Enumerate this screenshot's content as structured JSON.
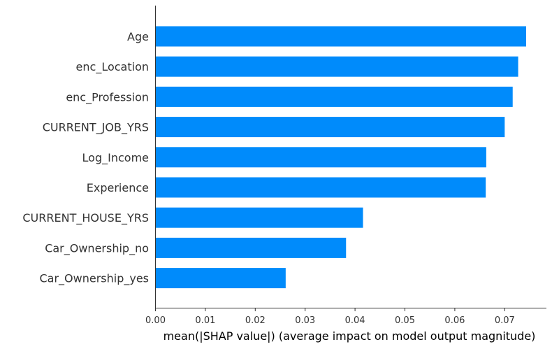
{
  "chart_data": {
    "type": "bar",
    "orientation": "horizontal",
    "title": "",
    "xlabel": "mean(|SHAP value|) (average impact on model output magnitude)",
    "ylabel": "",
    "categories": [
      "Age",
      "enc_Location",
      "enc_Profession",
      "CURRENT_JOB_YRS",
      "Log_Income",
      "Experience",
      "CURRENT_HOUSE_YRS",
      "Car_Ownership_no",
      "Car_Ownership_yes"
    ],
    "values": [
      0.0743,
      0.0727,
      0.0716,
      0.07,
      0.0663,
      0.0662,
      0.0416,
      0.0382,
      0.0261
    ],
    "xlim": [
      0,
      0.078
    ],
    "xticks": [
      0.0,
      0.01,
      0.02,
      0.03,
      0.04,
      0.05,
      0.06,
      0.07
    ],
    "xtick_labels": [
      "0.00",
      "0.01",
      "0.02",
      "0.03",
      "0.04",
      "0.05",
      "0.06",
      "0.07"
    ],
    "grid": false,
    "bar_color": "#008bfb"
  }
}
